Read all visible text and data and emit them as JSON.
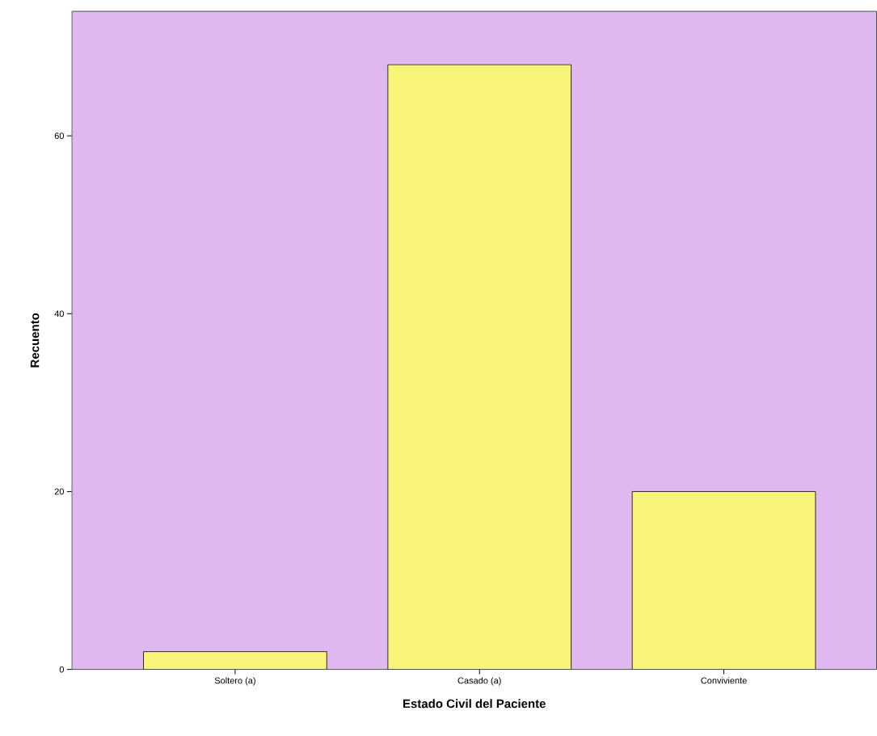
{
  "chart_data": {
    "type": "bar",
    "xlabel": "Estado Civil del Paciente",
    "ylabel": "Recuento",
    "categories": [
      "Soltero (a)",
      "Casado (a)",
      "Conviviente"
    ],
    "values": [
      2,
      68,
      20
    ],
    "color": "#f8f47a",
    "ylim": [
      0,
      74
    ],
    "yticks": [
      0,
      20,
      40,
      60
    ],
    "grid": false
  }
}
